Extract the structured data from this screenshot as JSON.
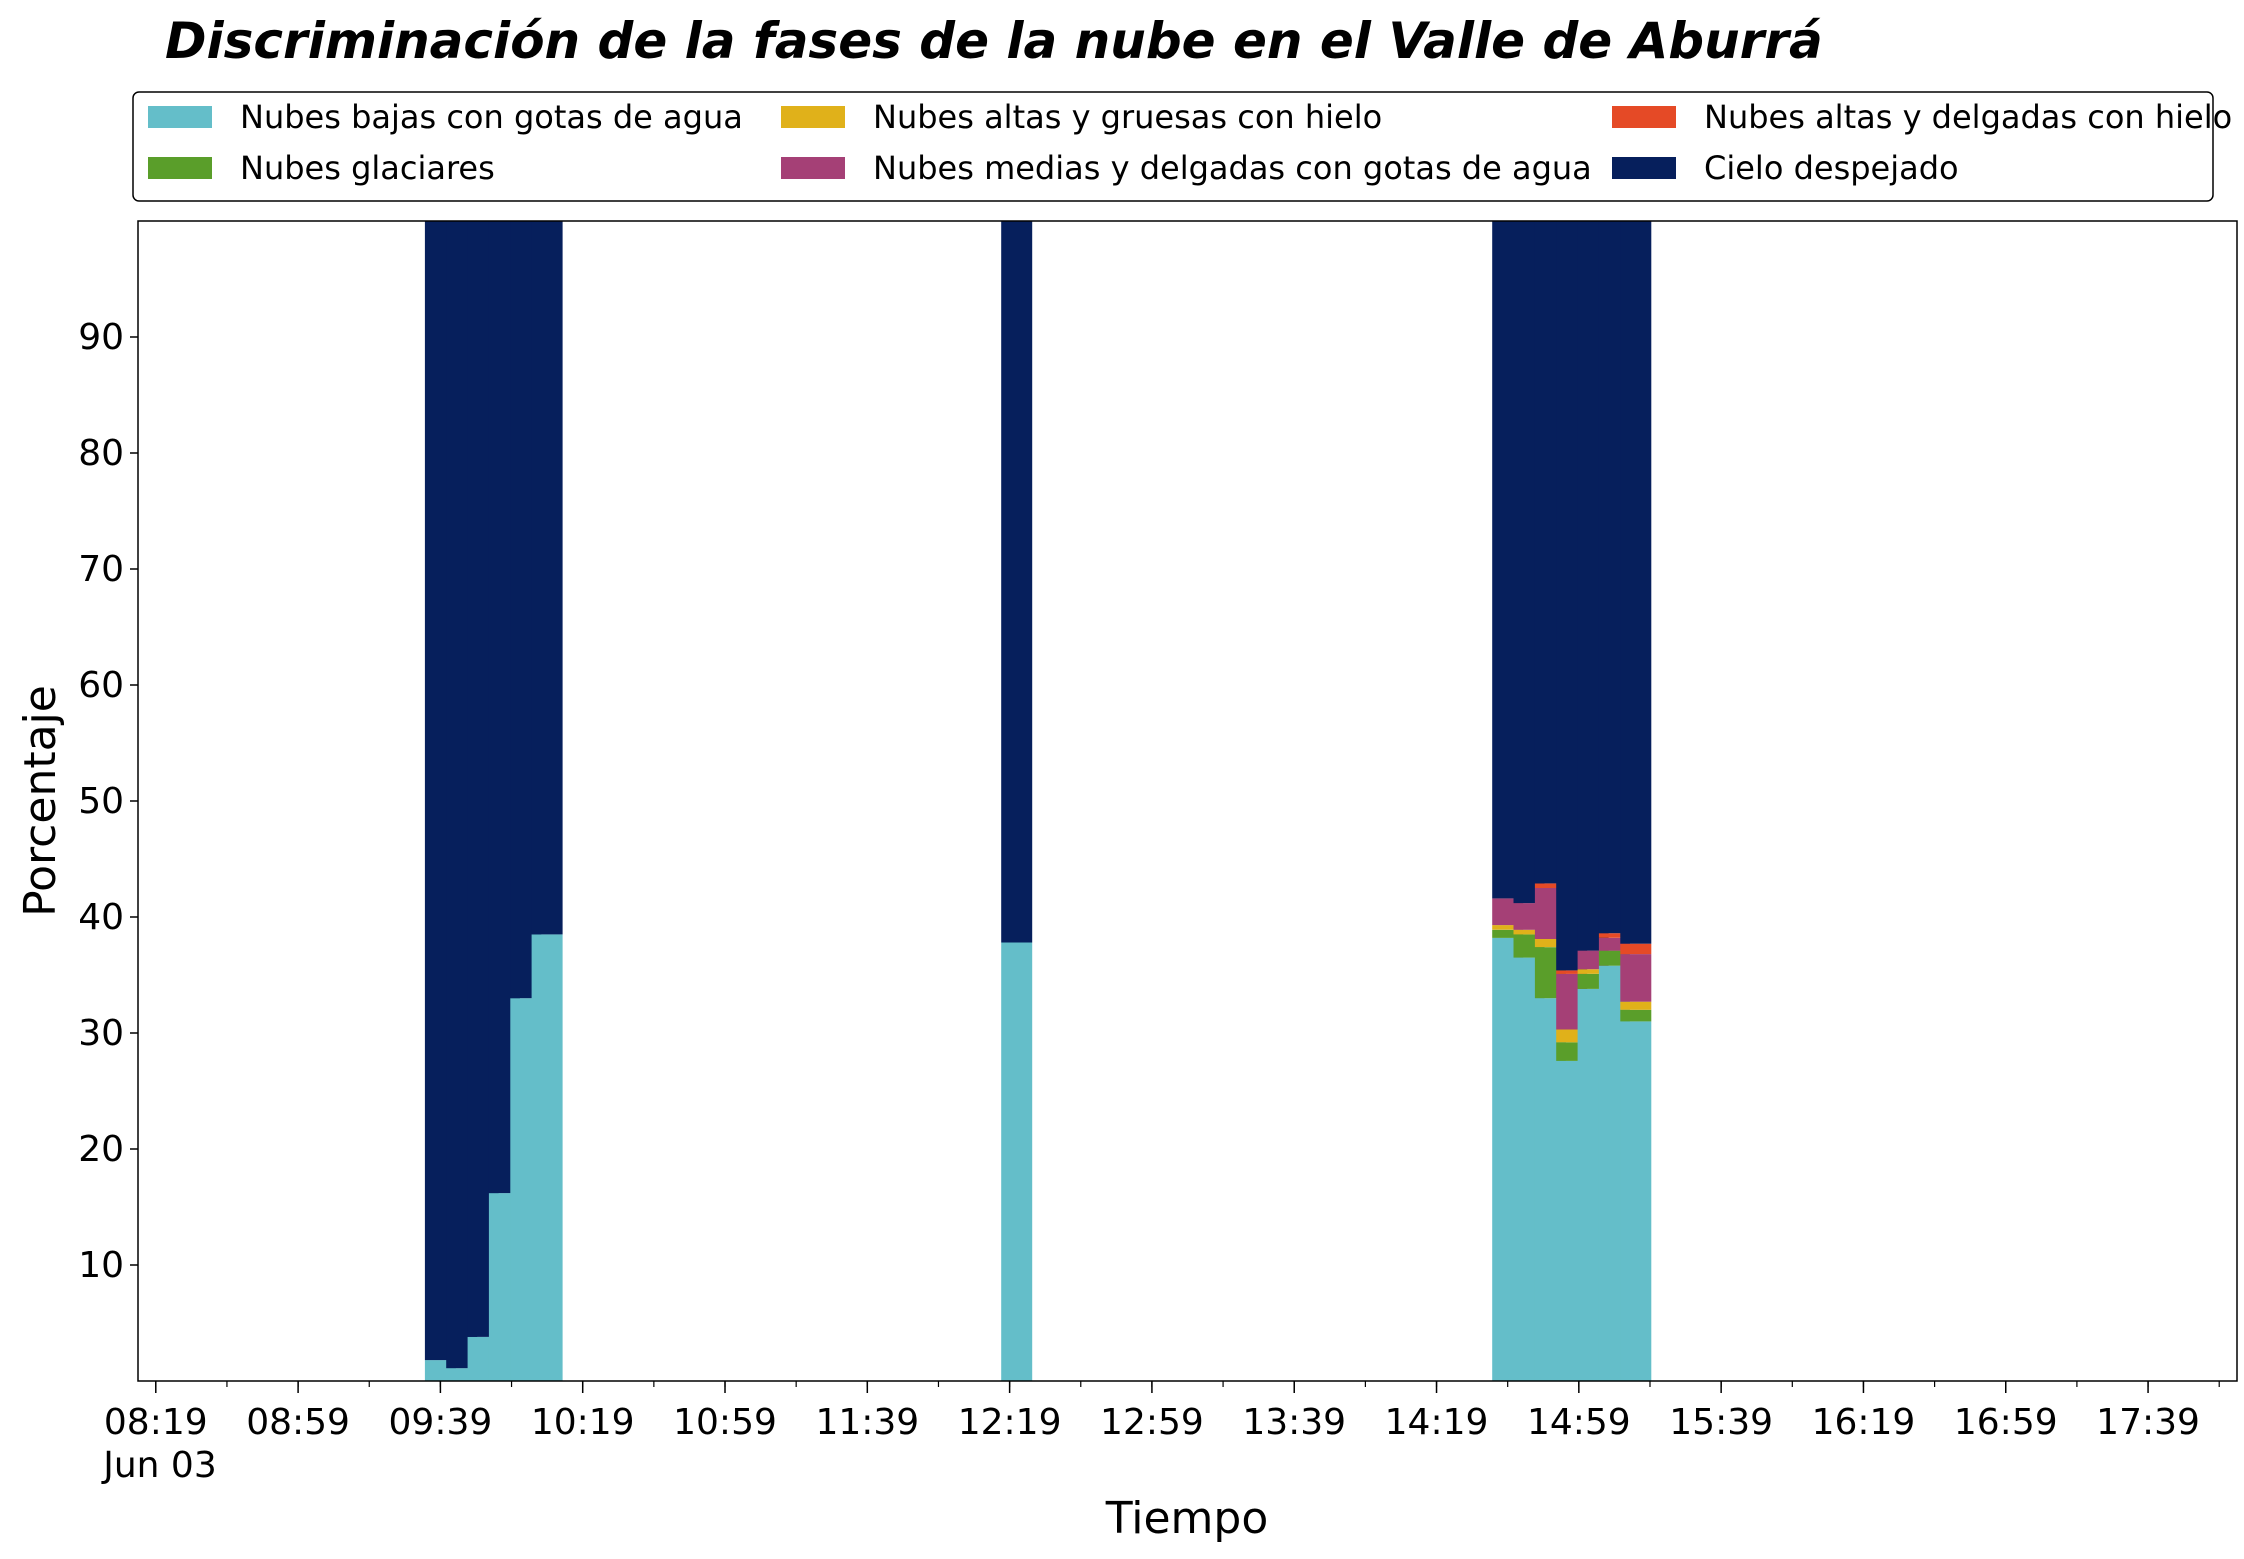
{
  "chart_data": {
    "type": "bar",
    "stacked": true,
    "title": "Discriminación de la fases de la nube en el Valle de Aburrá",
    "xlabel": "Tiempo",
    "ylabel": "Porcentaje",
    "x_date_label": "Jun 03",
    "x_tick_labels": [
      "08:19",
      "08:59",
      "09:39",
      "10:19",
      "10:59",
      "11:39",
      "12:19",
      "12:59",
      "13:39",
      "14:19",
      "14:59",
      "15:39",
      "16:19",
      "16:59",
      "17:39"
    ],
    "xlim": [
      "08:14",
      "18:04"
    ],
    "y_ticks": [
      10,
      20,
      30,
      40,
      50,
      60,
      70,
      80,
      90
    ],
    "ylim": [
      0,
      100
    ],
    "grid": false,
    "legend": {
      "placement": "top",
      "columns": 3
    },
    "x": [
      "09:39",
      "09:45",
      "09:51",
      "09:57",
      "10:03",
      "10:09",
      "12:21",
      "14:39",
      "14:45",
      "14:51",
      "14:57",
      "15:03",
      "15:09",
      "15:15"
    ],
    "series": [
      {
        "name": "Nubes bajas con gotas de agua",
        "color": "#64bec9",
        "values": [
          1.8,
          1.1,
          3.8,
          16.2,
          33.0,
          38.5,
          37.8,
          38.2,
          36.5,
          33.0,
          27.6,
          33.8,
          35.8,
          31.0
        ]
      },
      {
        "name": "Nubes glaciares",
        "color": "#5a9e2a",
        "values": [
          0,
          0,
          0,
          0,
          0,
          0,
          0,
          0.7,
          2.0,
          4.4,
          1.6,
          1.3,
          1.3,
          1.0
        ]
      },
      {
        "name": "Nubes altas y gruesas con hielo",
        "color": "#e0b11a",
        "values": [
          0,
          0,
          0,
          0,
          0,
          0,
          0,
          0.4,
          0.4,
          0.7,
          1.1,
          0.4,
          0,
          0.7
        ]
      },
      {
        "name": "Nubes medias y delgadas con gotas de agua",
        "color": "#a54076",
        "values": [
          0,
          0,
          0,
          0,
          0,
          0,
          0,
          2.3,
          2.3,
          4.4,
          4.8,
          1.6,
          1.1,
          4.1
        ]
      },
      {
        "name": "Nubes altas y delgadas con hielo",
        "color": "#e54a26",
        "values": [
          0,
          0,
          0,
          0,
          0,
          0,
          0,
          0,
          0,
          0.4,
          0.3,
          0,
          0.4,
          0.9
        ]
      },
      {
        "name": "Cielo despejado",
        "color": "#061f5c",
        "values": [
          98.2,
          98.9,
          96.2,
          83.8,
          67.0,
          61.5,
          62.2,
          58.4,
          58.8,
          57.1,
          64.6,
          62.9,
          61.4,
          62.3
        ]
      }
    ]
  }
}
